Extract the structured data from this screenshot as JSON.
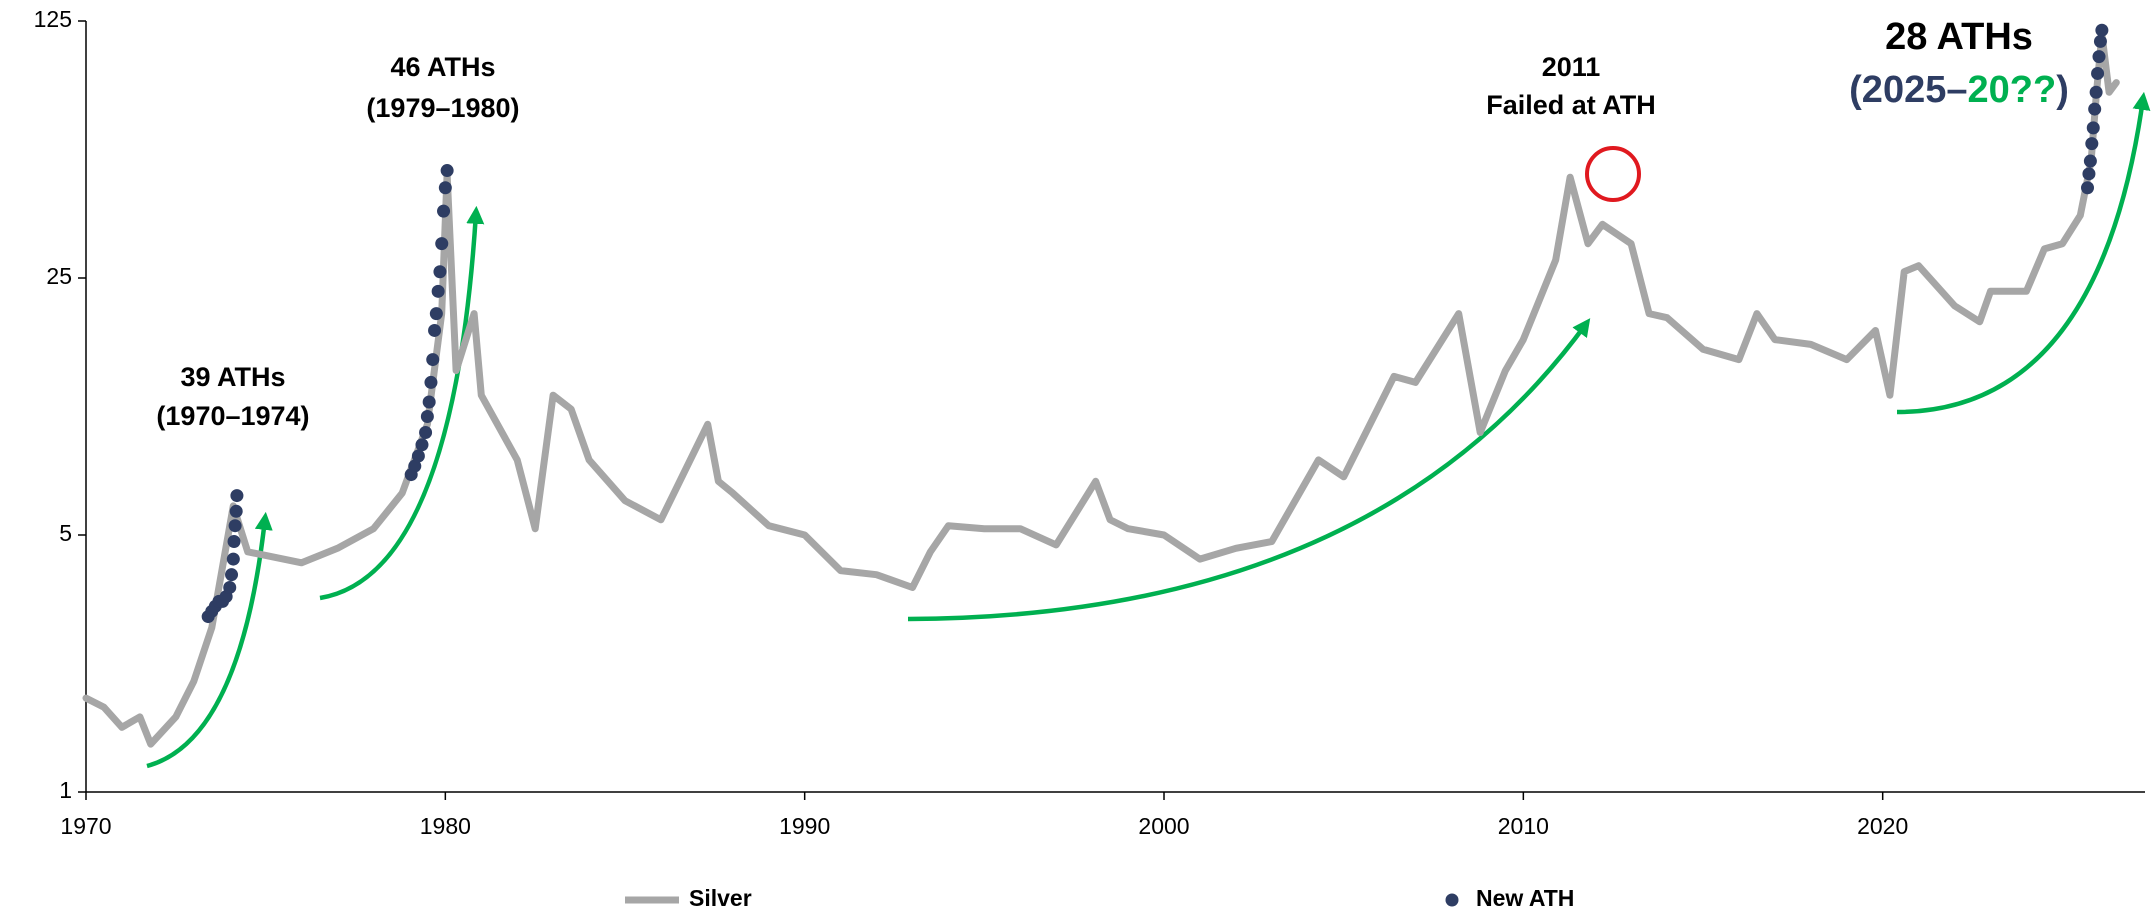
{
  "chart_data": {
    "type": "line",
    "log_scale": true,
    "grid": false,
    "legend": "bottom",
    "xlim": [
      1970,
      2027.3
    ],
    "xticks": [
      1970,
      1980,
      1990,
      2000,
      2010,
      2020
    ],
    "ylim": [
      1,
      125
    ],
    "yticks": [
      1,
      5,
      25,
      125
    ],
    "series": [
      {
        "name": "Silver",
        "type": "line",
        "color": "#a6a6a6",
        "x": [
          1970,
          1970.5,
          1971,
          1971.5,
          1971.8,
          1972.5,
          1973,
          1973.5,
          1974.1,
          1974.5,
          1975,
          1976,
          1977,
          1978,
          1978.8,
          1979.5,
          1979.9,
          1980.05,
          1980.3,
          1980.8,
          1981,
          1982,
          1982.5,
          1983,
          1983.5,
          1984,
          1985,
          1986,
          1987.3,
          1987.6,
          1988,
          1989,
          1990,
          1991,
          1992,
          1993,
          1993.5,
          1994,
          1995,
          1996,
          1997,
          1998.1,
          1998.5,
          1999,
          2000,
          2001,
          2002,
          2003,
          2004.3,
          2005,
          2006.4,
          2007,
          2008.2,
          2008.8,
          2009.5,
          2010,
          2010.9,
          2011.3,
          2011.8,
          2012.2,
          2013,
          2013.5,
          2014,
          2015,
          2016,
          2016.5,
          2017,
          2018,
          2019,
          2019.8,
          2020.2,
          2020.6,
          2021,
          2022,
          2022.7,
          2023,
          2024,
          2024.5,
          2025,
          2025.5,
          2025.8,
          2025.95,
          2026.1,
          2026.3,
          2026.5
        ],
        "values": [
          1.8,
          1.7,
          1.5,
          1.6,
          1.35,
          1.6,
          2.0,
          2.8,
          6.0,
          4.5,
          4.4,
          4.2,
          4.6,
          5.2,
          6.5,
          10,
          20,
          48,
          14,
          20,
          12,
          8,
          5.2,
          12,
          11,
          8,
          6.2,
          5.5,
          10,
          7,
          6.5,
          5.3,
          5,
          4,
          3.9,
          3.6,
          4.5,
          5.3,
          5.2,
          5.2,
          4.7,
          7.0,
          5.5,
          5.2,
          5.0,
          4.3,
          4.6,
          4.8,
          8,
          7.2,
          13.5,
          13,
          20,
          9.5,
          14,
          17,
          28,
          47,
          31,
          35,
          31,
          20,
          19.5,
          16,
          15,
          20,
          17,
          16.5,
          15,
          18,
          12,
          26,
          27,
          21,
          19,
          23,
          23,
          30,
          31,
          37,
          52,
          80,
          115,
          80,
          85
        ]
      },
      {
        "name": "New ATH",
        "type": "scatter",
        "color": "#2e3d63",
        "x": [
          1973.4,
          1973.5,
          1973.6,
          1973.7,
          1973.8,
          1973.9,
          1974.0,
          1974.05,
          1974.1,
          1974.12,
          1974.15,
          1974.18,
          1974.2,
          1979.05,
          1979.15,
          1979.25,
          1979.35,
          1979.45,
          1979.5,
          1979.55,
          1979.6,
          1979.65,
          1979.7,
          1979.75,
          1979.8,
          1979.85,
          1979.9,
          1979.95,
          1980.0,
          1980.05,
          2025.7,
          2025.74,
          2025.78,
          2025.82,
          2025.86,
          2025.9,
          2025.94,
          2025.98,
          2026.02,
          2026.06,
          2026.1
        ],
        "values": [
          3.0,
          3.1,
          3.2,
          3.3,
          3.3,
          3.4,
          3.6,
          3.9,
          4.3,
          4.8,
          5.3,
          5.8,
          6.4,
          7.3,
          7.7,
          8.2,
          8.8,
          9.5,
          10.5,
          11.5,
          13,
          15,
          18,
          20,
          23,
          26,
          31,
          38,
          44,
          49,
          44,
          48,
          52,
          58,
          64,
          72,
          80,
          90,
          100,
          110,
          118
        ]
      }
    ],
    "annotations": [
      {
        "text": "39 ATHs",
        "color": "#c4a96b"
      },
      {
        "text": "(1970–1974)",
        "color": "#2e3d63"
      },
      {
        "text": "46 ATHs",
        "color": "#c4a96b"
      },
      {
        "text": "(1979–1980)",
        "color": "#2e3d63"
      },
      {
        "text": "2011",
        "color": "#e0191f"
      },
      {
        "text": "Failed at ATH",
        "color": "#e0191f"
      },
      {
        "text": "28 ATHs",
        "color": "#c4a96b"
      },
      {
        "text": "(2025–",
        "color": "#2e3d63"
      },
      {
        "text": "20??",
        "color": "#00b050"
      },
      {
        "text": ")",
        "color": "#2e3d63"
      }
    ]
  }
}
